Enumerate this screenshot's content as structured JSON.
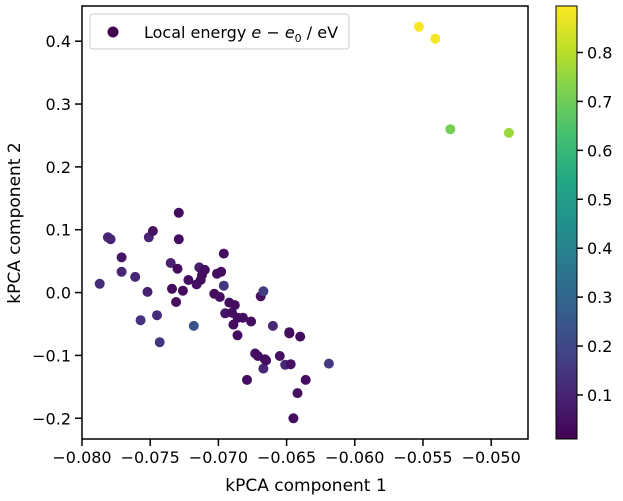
{
  "chart_data": {
    "type": "scatter",
    "title": "",
    "xlabel": "kPCA component 1",
    "ylabel": "kPCA component 2",
    "xlim": [
      -0.08,
      -0.0473
    ],
    "ylim": [
      -0.233,
      0.456
    ],
    "xticks": [
      -0.08,
      -0.075,
      -0.07,
      -0.065,
      -0.06,
      -0.055,
      -0.05
    ],
    "xtick_labels": [
      "−0.080",
      "−0.075",
      "−0.070",
      "−0.065",
      "−0.060",
      "−0.055",
      "−0.050"
    ],
    "yticks": [
      -0.2,
      -0.1,
      0.0,
      0.1,
      0.2,
      0.3,
      0.4
    ],
    "ytick_labels": [
      "−0.2",
      "−0.1",
      "0.0",
      "0.1",
      "0.2",
      "0.3",
      "0.4"
    ],
    "grid": false,
    "legend": {
      "position": "top-left",
      "label_prefix": "Local energy ",
      "label_math": "e − e",
      "label_sub": "0",
      "label_suffix": " / eV"
    },
    "colorbar": {
      "colormap": "viridis",
      "range": [
        0.01,
        0.895
      ],
      "ticks": [
        0.1,
        0.2,
        0.3,
        0.4,
        0.5,
        0.6,
        0.7,
        0.8
      ],
      "tick_labels": [
        "0.1",
        "0.2",
        "0.3",
        "0.4",
        "0.5",
        "0.6",
        "0.7",
        "0.8"
      ]
    },
    "series": [
      {
        "name": "Local energy e − e0 / eV",
        "points": [
          {
            "x": -0.0553,
            "y": 0.423,
            "c": 0.89
          },
          {
            "x": -0.0541,
            "y": 0.404,
            "c": 0.88
          },
          {
            "x": -0.053,
            "y": 0.26,
            "c": 0.71
          },
          {
            "x": -0.0487,
            "y": 0.254,
            "c": 0.76
          },
          {
            "x": -0.0787,
            "y": 0.014,
            "c": 0.12
          },
          {
            "x": -0.0781,
            "y": 0.088,
            "c": 0.1
          },
          {
            "x": -0.0779,
            "y": 0.085,
            "c": 0.1
          },
          {
            "x": -0.0771,
            "y": 0.056,
            "c": 0.06
          },
          {
            "x": -0.0771,
            "y": 0.033,
            "c": 0.1
          },
          {
            "x": -0.0761,
            "y": 0.025,
            "c": 0.1
          },
          {
            "x": -0.0757,
            "y": -0.044,
            "c": 0.14
          },
          {
            "x": -0.0752,
            "y": 0.001,
            "c": 0.09
          },
          {
            "x": -0.0751,
            "y": 0.088,
            "c": 0.1
          },
          {
            "x": -0.0748,
            "y": 0.098,
            "c": 0.05
          },
          {
            "x": -0.0745,
            "y": -0.036,
            "c": 0.12
          },
          {
            "x": -0.0743,
            "y": -0.079,
            "c": 0.15
          },
          {
            "x": -0.0735,
            "y": 0.047,
            "c": 0.09
          },
          {
            "x": -0.0734,
            "y": 0.006,
            "c": 0.04
          },
          {
            "x": -0.0731,
            "y": -0.015,
            "c": 0.04
          },
          {
            "x": -0.073,
            "y": 0.038,
            "c": 0.04
          },
          {
            "x": -0.0729,
            "y": 0.127,
            "c": 0.04
          },
          {
            "x": -0.0729,
            "y": 0.085,
            "c": 0.04
          },
          {
            "x": -0.0726,
            "y": 0.003,
            "c": 0.04
          },
          {
            "x": -0.0722,
            "y": 0.02,
            "c": 0.04
          },
          {
            "x": -0.0718,
            "y": -0.053,
            "c": 0.24
          },
          {
            "x": -0.0716,
            "y": 0.013,
            "c": 0.04
          },
          {
            "x": -0.0714,
            "y": 0.04,
            "c": 0.08
          },
          {
            "x": -0.0713,
            "y": 0.02,
            "c": 0.04
          },
          {
            "x": -0.0712,
            "y": 0.028,
            "c": 0.04
          },
          {
            "x": -0.071,
            "y": 0.036,
            "c": 0.04
          },
          {
            "x": -0.0703,
            "y": -0.002,
            "c": 0.04
          },
          {
            "x": -0.0701,
            "y": 0.03,
            "c": 0.04
          },
          {
            "x": -0.0699,
            "y": -0.007,
            "c": 0.04
          },
          {
            "x": -0.0698,
            "y": 0.033,
            "c": 0.04
          },
          {
            "x": -0.0696,
            "y": 0.062,
            "c": 0.04
          },
          {
            "x": -0.0696,
            "y": 0.011,
            "c": 0.15
          },
          {
            "x": -0.0695,
            "y": -0.033,
            "c": 0.06
          },
          {
            "x": -0.0692,
            "y": -0.016,
            "c": 0.04
          },
          {
            "x": -0.069,
            "y": -0.032,
            "c": 0.04
          },
          {
            "x": -0.0689,
            "y": -0.051,
            "c": 0.04
          },
          {
            "x": -0.0688,
            "y": -0.02,
            "c": 0.04
          },
          {
            "x": -0.0686,
            "y": -0.04,
            "c": 0.04
          },
          {
            "x": -0.0686,
            "y": -0.068,
            "c": 0.04
          },
          {
            "x": -0.0682,
            "y": -0.04,
            "c": 0.04
          },
          {
            "x": -0.0679,
            "y": -0.139,
            "c": 0.04
          },
          {
            "x": -0.0676,
            "y": -0.046,
            "c": 0.04
          },
          {
            "x": -0.0673,
            "y": -0.097,
            "c": 0.04
          },
          {
            "x": -0.0671,
            "y": -0.101,
            "c": 0.04
          },
          {
            "x": -0.0669,
            "y": -0.006,
            "c": 0.04
          },
          {
            "x": -0.0667,
            "y": 0.002,
            "c": 0.17
          },
          {
            "x": -0.0667,
            "y": -0.121,
            "c": 0.1
          },
          {
            "x": -0.0666,
            "y": -0.106,
            "c": 0.04
          },
          {
            "x": -0.0665,
            "y": -0.108,
            "c": 0.04
          },
          {
            "x": -0.066,
            "y": -0.053,
            "c": 0.11
          },
          {
            "x": -0.0655,
            "y": -0.101,
            "c": 0.05
          },
          {
            "x": -0.0651,
            "y": -0.115,
            "c": 0.11
          },
          {
            "x": -0.0648,
            "y": -0.065,
            "c": 0.04
          },
          {
            "x": -0.0648,
            "y": -0.063,
            "c": 0.04
          },
          {
            "x": -0.0647,
            "y": -0.114,
            "c": 0.05
          },
          {
            "x": -0.0645,
            "y": -0.2,
            "c": 0.04
          },
          {
            "x": -0.0642,
            "y": -0.16,
            "c": 0.04
          },
          {
            "x": -0.064,
            "y": -0.07,
            "c": 0.04
          },
          {
            "x": -0.0636,
            "y": -0.139,
            "c": 0.04
          },
          {
            "x": -0.0619,
            "y": -0.113,
            "c": 0.16
          }
        ]
      }
    ]
  }
}
